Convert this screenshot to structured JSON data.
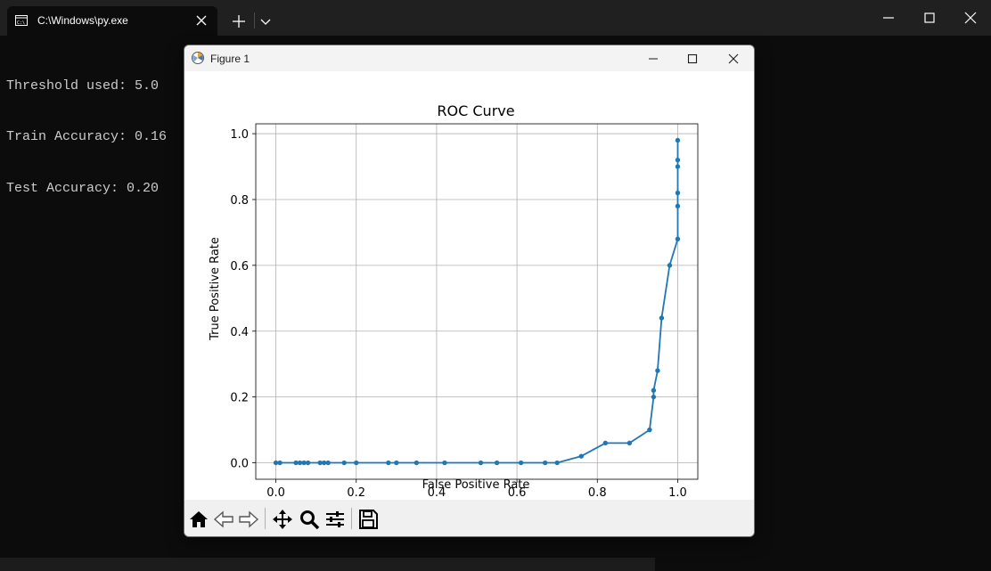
{
  "terminal": {
    "tab_title": "C:\\Windows\\py.exe",
    "lines": [
      "Threshold used: 5.0",
      "Train Accuracy: 0.16",
      "Test Accuracy: 0.20"
    ]
  },
  "figure_window": {
    "title": "Figure 1",
    "toolbar": [
      "home-icon",
      "back-arrow-icon",
      "forward-arrow-icon",
      "pan-icon",
      "zoom-icon",
      "configure-subplots-icon",
      "save-icon"
    ]
  },
  "chart_data": {
    "type": "line",
    "title": "ROC Curve",
    "xlabel": "False Positive Rate",
    "ylabel": "True Positive Rate",
    "xlim": [
      -0.05,
      1.05
    ],
    "ylim": [
      -0.05,
      1.03
    ],
    "xticks": [
      "0.0",
      "0.2",
      "0.4",
      "0.6",
      "0.8",
      "1.0"
    ],
    "yticks": [
      "0.0",
      "0.2",
      "0.4",
      "0.6",
      "0.8",
      "1.0"
    ],
    "grid": true,
    "marker": "circle",
    "color": "#1f77b4",
    "x": [
      0.0,
      0.01,
      0.05,
      0.06,
      0.07,
      0.08,
      0.11,
      0.12,
      0.13,
      0.17,
      0.2,
      0.28,
      0.3,
      0.35,
      0.42,
      0.51,
      0.55,
      0.61,
      0.67,
      0.7,
      0.76,
      0.82,
      0.88,
      0.93,
      0.94,
      0.94,
      0.95,
      0.96,
      0.98,
      1.0,
      1.0,
      1.0,
      1.0,
      1.0,
      1.0
    ],
    "y": [
      0.0,
      0.0,
      0.0,
      0.0,
      0.0,
      0.0,
      0.0,
      0.0,
      0.0,
      0.0,
      0.0,
      0.0,
      0.0,
      0.0,
      0.0,
      0.0,
      0.0,
      0.0,
      0.0,
      0.0,
      0.02,
      0.06,
      0.06,
      0.1,
      0.2,
      0.22,
      0.28,
      0.44,
      0.6,
      0.68,
      0.78,
      0.82,
      0.9,
      0.92,
      0.98
    ]
  },
  "colors": {
    "terminal_bg": "#0c0c0c",
    "terminal_text": "#cccccc",
    "line": "#1f77b4"
  }
}
